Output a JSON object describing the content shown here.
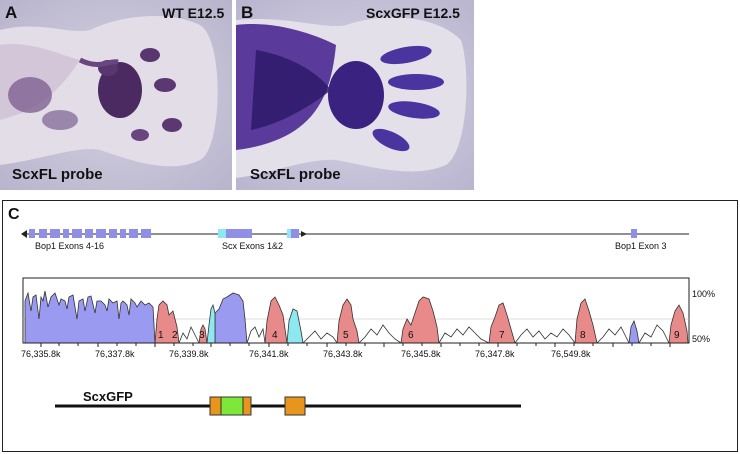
{
  "panel_a": {
    "letter": "A",
    "title": "WT E12.5",
    "probe": "ScxFL probe"
  },
  "panel_b": {
    "letter": "B",
    "title": "ScxGFP E12.5",
    "probe": "ScxFL probe"
  },
  "panel_c": {
    "letter": "C",
    "gene_labels": {
      "bop1_exons_4_16": "Bop1 Exons 4-16",
      "scx_exons": "Scx Exons 1&2",
      "bop1_exon_3": "Bop1 Exon 3"
    },
    "scale_labels": {
      "top": "100%",
      "bottom": "50%"
    },
    "axis_ticks": [
      "76,335.8k",
      "76,337.8k",
      "76,339.8k",
      "76,341.8k",
      "76,343.8k",
      "76,345.8k",
      "76,347.8k",
      "76,549.8k"
    ],
    "conserved_region_numbers": [
      "1",
      "2",
      "3",
      "4",
      "5",
      "6",
      "7",
      "8",
      "9"
    ],
    "construct_label": "ScxGFP",
    "colors": {
      "exon": "#8f8fe6",
      "coding_peak": "#9a9af0",
      "utr_peak": "#8ee8f0",
      "noncoding_peak": "#e88a8a",
      "gfp": "#7ee83a",
      "enhancer_box": "#e8951e"
    }
  }
}
